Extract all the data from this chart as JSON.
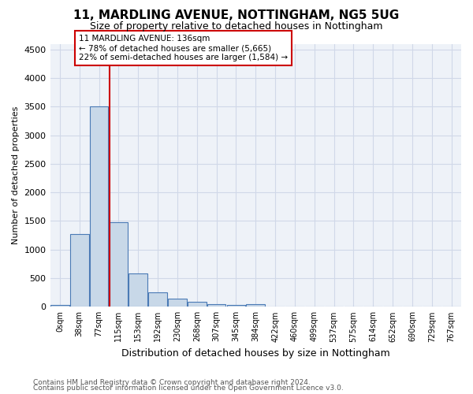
{
  "title": "11, MARDLING AVENUE, NOTTINGHAM, NG5 5UG",
  "subtitle": "Size of property relative to detached houses in Nottingham",
  "xlabel": "Distribution of detached houses by size in Nottingham",
  "ylabel": "Number of detached properties",
  "bar_values": [
    30,
    1270,
    3500,
    1480,
    580,
    250,
    140,
    90,
    40,
    30,
    50,
    0,
    0,
    0,
    0,
    0,
    0,
    0,
    0,
    0,
    0
  ],
  "bar_labels": [
    "0sqm",
    "38sqm",
    "77sqm",
    "115sqm",
    "153sqm",
    "192sqm",
    "230sqm",
    "268sqm",
    "307sqm",
    "345sqm",
    "384sqm",
    "422sqm",
    "460sqm",
    "499sqm",
    "537sqm",
    "575sqm",
    "614sqm",
    "652sqm",
    "690sqm",
    "729sqm",
    "767sqm"
  ],
  "bar_color": "#c8d8e8",
  "bar_edge_color": "#4a7ab5",
  "vline_x": 3,
  "vline_color": "#cc0000",
  "annotation_text": "11 MARDLING AVENUE: 136sqm\n← 78% of detached houses are smaller (5,665)\n22% of semi-detached houses are larger (1,584) →",
  "annotation_box_color": "#ffffff",
  "annotation_box_edge": "#cc0000",
  "ylim": [
    0,
    4600
  ],
  "yticks": [
    0,
    500,
    1000,
    1500,
    2000,
    2500,
    3000,
    3500,
    4000,
    4500
  ],
  "grid_color": "#d0d8e8",
  "bg_color": "#eef2f8",
  "footer_line1": "Contains HM Land Registry data © Crown copyright and database right 2024.",
  "footer_line2": "Contains public sector information licensed under the Open Government Licence v3.0."
}
